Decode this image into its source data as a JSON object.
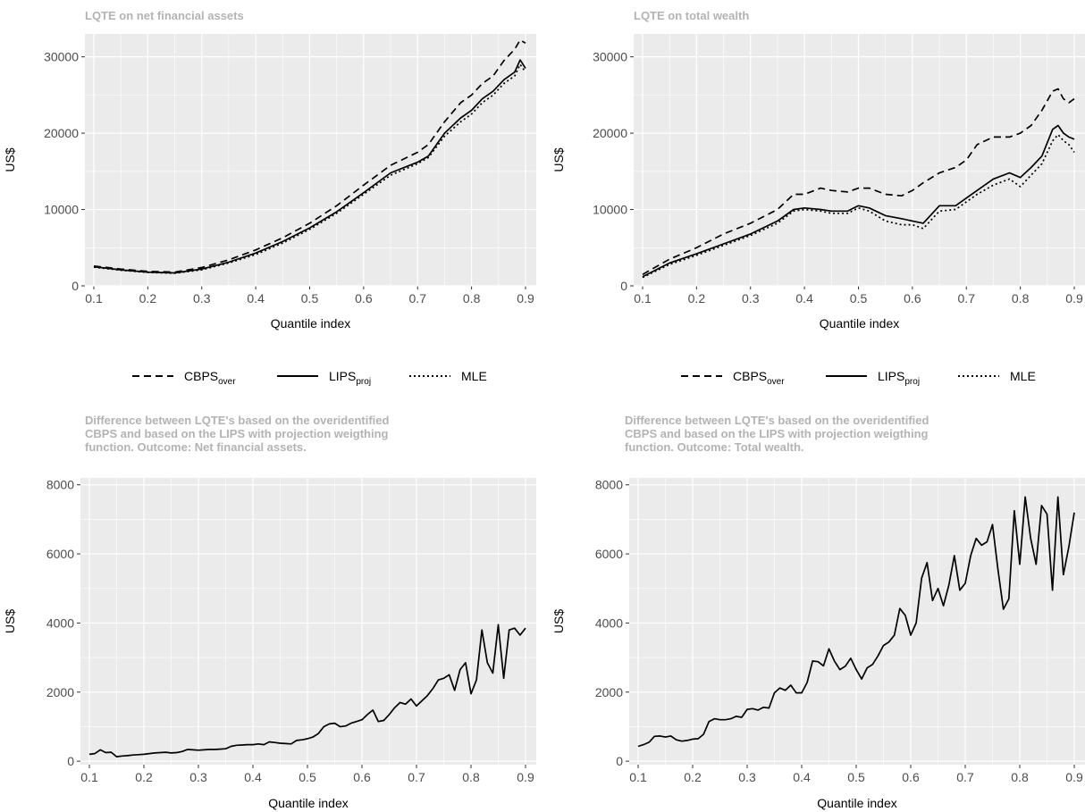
{
  "chart_data": [
    {
      "type": "line",
      "title": "LQTE on net financial assets",
      "xlabel": "Quantile index",
      "ylabel": "US$",
      "xlim": [
        0.1,
        0.9
      ],
      "ylim": [
        0,
        33000
      ],
      "xticks": [
        "0.1",
        "0.2",
        "0.3",
        "0.4",
        "0.5",
        "0.6",
        "0.7",
        "0.8",
        "0.9"
      ],
      "yticks": [
        "0",
        "10000",
        "20000",
        "30000"
      ],
      "grid": true,
      "x": [
        0.1,
        0.15,
        0.2,
        0.25,
        0.3,
        0.35,
        0.4,
        0.45,
        0.5,
        0.55,
        0.6,
        0.65,
        0.7,
        0.72,
        0.75,
        0.78,
        0.8,
        0.82,
        0.84,
        0.86,
        0.88,
        0.89,
        0.9
      ],
      "series": [
        {
          "name": "CBPS_over",
          "dash": "dashed",
          "values": [
            2600,
            2200,
            1900,
            1800,
            2400,
            3400,
            4700,
            6300,
            8200,
            10500,
            13200,
            15800,
            17500,
            18500,
            21500,
            24000,
            25000,
            26500,
            27500,
            29500,
            31000,
            32200,
            31800
          ]
        },
        {
          "name": "LIPS_proj",
          "dash": "solid",
          "values": [
            2500,
            2100,
            1800,
            1700,
            2200,
            3100,
            4300,
            5800,
            7600,
            9700,
            12200,
            14800,
            16200,
            17000,
            20000,
            22000,
            23000,
            24500,
            25500,
            27000,
            28000,
            29600,
            28500
          ]
        },
        {
          "name": "MLE",
          "dash": "dotted",
          "values": [
            2450,
            2050,
            1750,
            1650,
            2100,
            3000,
            4100,
            5600,
            7400,
            9500,
            12000,
            14500,
            16000,
            16800,
            19600,
            21500,
            22500,
            24000,
            25000,
            26500,
            27500,
            29000,
            28000
          ]
        }
      ]
    },
    {
      "type": "line",
      "title": "LQTE on total wealth",
      "xlabel": "Quantile index",
      "ylabel": "US$",
      "xlim": [
        0.1,
        0.9
      ],
      "ylim": [
        0,
        33000
      ],
      "xticks": [
        "0.1",
        "0.2",
        "0.3",
        "0.4",
        "0.5",
        "0.6",
        "0.7",
        "0.8",
        "0.9"
      ],
      "yticks": [
        "0",
        "10000",
        "20000",
        "30000"
      ],
      "grid": true,
      "x": [
        0.1,
        0.15,
        0.2,
        0.25,
        0.3,
        0.35,
        0.38,
        0.4,
        0.43,
        0.45,
        0.48,
        0.5,
        0.52,
        0.55,
        0.58,
        0.6,
        0.62,
        0.65,
        0.68,
        0.7,
        0.72,
        0.75,
        0.78,
        0.8,
        0.82,
        0.84,
        0.86,
        0.87,
        0.88,
        0.89,
        0.9
      ],
      "series": [
        {
          "name": "CBPS_over",
          "dash": "dashed",
          "values": [
            1500,
            3500,
            5000,
            6800,
            8200,
            10000,
            12000,
            12000,
            12800,
            12500,
            12300,
            12800,
            12800,
            12000,
            11800,
            12500,
            13500,
            14800,
            15500,
            16500,
            18500,
            19500,
            19500,
            20000,
            21000,
            23000,
            25500,
            25800,
            24500,
            24000,
            24500
          ]
        },
        {
          "name": "LIPS_proj",
          "dash": "solid",
          "values": [
            1200,
            3000,
            4200,
            5500,
            6800,
            8500,
            10000,
            10200,
            10000,
            9800,
            9800,
            10500,
            10200,
            9200,
            8800,
            8500,
            8200,
            10500,
            10500,
            11500,
            12500,
            14000,
            14800,
            14200,
            15500,
            17000,
            20500,
            21000,
            20000,
            19500,
            19200
          ]
        },
        {
          "name": "MLE",
          "dash": "dotted",
          "values": [
            1100,
            2800,
            4000,
            5300,
            6600,
            8200,
            9800,
            10000,
            9800,
            9500,
            9500,
            10200,
            9800,
            8500,
            8000,
            8000,
            7500,
            9800,
            10000,
            11000,
            12000,
            13200,
            14000,
            13000,
            14500,
            16000,
            19000,
            19800,
            19000,
            18500,
            17500
          ]
        }
      ]
    },
    {
      "type": "line",
      "title": "Difference between LQTE's based on the overidentified CBPS and based on the LIPS with projection weigthing function. Outcome: Net financial assets.",
      "title_lines": [
        "Difference between LQTE's based on the overidentified",
        "CBPS and based on the LIPS with projection weigthing",
        "function. Outcome: Net financial assets."
      ],
      "xlabel": "Quantile index",
      "ylabel": "US$",
      "xlim": [
        0.1,
        0.9
      ],
      "ylim": [
        -100,
        8200
      ],
      "xticks": [
        "0.1",
        "0.2",
        "0.3",
        "0.4",
        "0.5",
        "0.6",
        "0.7",
        "0.8",
        "0.9"
      ],
      "yticks": [
        "0",
        "2000",
        "4000",
        "6000",
        "8000"
      ],
      "grid": true,
      "x": [
        0.1,
        0.11,
        0.12,
        0.13,
        0.14,
        0.15,
        0.16,
        0.17,
        0.18,
        0.19,
        0.2,
        0.21,
        0.22,
        0.23,
        0.24,
        0.25,
        0.26,
        0.27,
        0.28,
        0.29,
        0.3,
        0.31,
        0.32,
        0.33,
        0.34,
        0.35,
        0.36,
        0.37,
        0.38,
        0.39,
        0.4,
        0.41,
        0.42,
        0.43,
        0.44,
        0.45,
        0.46,
        0.47,
        0.48,
        0.49,
        0.5,
        0.51,
        0.52,
        0.53,
        0.54,
        0.55,
        0.56,
        0.57,
        0.58,
        0.59,
        0.6,
        0.61,
        0.62,
        0.63,
        0.64,
        0.65,
        0.66,
        0.67,
        0.68,
        0.69,
        0.7,
        0.71,
        0.72,
        0.73,
        0.74,
        0.75,
        0.76,
        0.77,
        0.78,
        0.79,
        0.8,
        0.81,
        0.82,
        0.83,
        0.84,
        0.85,
        0.86,
        0.87,
        0.88,
        0.89,
        0.9
      ],
      "series": [
        {
          "name": "",
          "dash": "solid",
          "values": [
            200,
            220,
            330,
            250,
            260,
            130,
            150,
            160,
            180,
            190,
            200,
            220,
            240,
            250,
            260,
            240,
            250,
            280,
            340,
            330,
            320,
            330,
            340,
            340,
            350,
            360,
            430,
            460,
            470,
            480,
            480,
            500,
            480,
            560,
            540,
            520,
            510,
            500,
            600,
            620,
            650,
            700,
            800,
            1000,
            1080,
            1100,
            1000,
            1020,
            1100,
            1150,
            1200,
            1350,
            1480,
            1150,
            1180,
            1350,
            1550,
            1700,
            1650,
            1800,
            1600,
            1750,
            1900,
            2100,
            2350,
            2400,
            2500,
            2050,
            2650,
            2850,
            1950,
            2350,
            3800,
            2850,
            2550,
            3950,
            2400,
            3800,
            3850,
            3650,
            3850
          ]
        }
      ]
    },
    {
      "type": "line",
      "title": "Difference between LQTE's based on the overidentified CBPS and based on the LIPS with projection weigthing function. Outcome: Total wealth.",
      "title_lines": [
        "Difference between LQTE's based on the overidentified",
        "CBPS and based on the LIPS with projection weigthing",
        "function. Outcome: Total wealth."
      ],
      "xlabel": "Quantile index",
      "ylabel": "US$",
      "xlim": [
        0.1,
        0.9
      ],
      "ylim": [
        -100,
        8200
      ],
      "xticks": [
        "0.1",
        "0.2",
        "0.3",
        "0.4",
        "0.5",
        "0.6",
        "0.7",
        "0.8",
        "0.9"
      ],
      "yticks": [
        "0",
        "2000",
        "4000",
        "6000",
        "8000"
      ],
      "grid": true,
      "x": [
        0.1,
        0.11,
        0.12,
        0.13,
        0.14,
        0.15,
        0.16,
        0.17,
        0.18,
        0.19,
        0.2,
        0.21,
        0.22,
        0.23,
        0.24,
        0.25,
        0.26,
        0.27,
        0.28,
        0.29,
        0.3,
        0.31,
        0.32,
        0.33,
        0.34,
        0.35,
        0.36,
        0.37,
        0.38,
        0.39,
        0.4,
        0.41,
        0.42,
        0.43,
        0.44,
        0.45,
        0.46,
        0.47,
        0.48,
        0.49,
        0.5,
        0.51,
        0.52,
        0.53,
        0.54,
        0.55,
        0.56,
        0.57,
        0.58,
        0.59,
        0.6,
        0.61,
        0.62,
        0.63,
        0.64,
        0.65,
        0.66,
        0.67,
        0.68,
        0.69,
        0.7,
        0.71,
        0.72,
        0.73,
        0.74,
        0.75,
        0.76,
        0.77,
        0.78,
        0.79,
        0.8,
        0.81,
        0.82,
        0.83,
        0.84,
        0.85,
        0.86,
        0.87,
        0.88,
        0.89,
        0.9
      ],
      "series": [
        {
          "name": "",
          "dash": "solid",
          "values": [
            430,
            480,
            550,
            720,
            730,
            700,
            730,
            620,
            580,
            600,
            640,
            650,
            780,
            1150,
            1230,
            1200,
            1200,
            1230,
            1300,
            1270,
            1500,
            1520,
            1480,
            1560,
            1540,
            1980,
            2120,
            2050,
            2200,
            1980,
            1980,
            2280,
            2900,
            2880,
            2760,
            3250,
            2900,
            2650,
            2750,
            2980,
            2650,
            2380,
            2700,
            2800,
            3050,
            3350,
            3450,
            3650,
            4420,
            4220,
            3650,
            4000,
            5300,
            5750,
            4650,
            5000,
            4500,
            5100,
            5950,
            4950,
            5150,
            5950,
            6450,
            6250,
            6350,
            6850,
            5550,
            4400,
            4700,
            7250,
            5700,
            7650,
            6450,
            5700,
            7400,
            7150,
            4950,
            7650,
            5400,
            6200,
            7200
          ]
        }
      ]
    }
  ],
  "legend": {
    "items": [
      {
        "main": "CBPS",
        "sub": "over",
        "dash": "dashed"
      },
      {
        "main": "LIPS",
        "sub": "proj",
        "dash": "solid"
      },
      {
        "main": "MLE",
        "sub": "",
        "dash": "dotted"
      }
    ]
  },
  "colors": {
    "panel": "#ebebeb",
    "grid": "#ffffff",
    "line": "#000000",
    "title": "#b3b3b3",
    "tick": "#4d4d4d"
  }
}
